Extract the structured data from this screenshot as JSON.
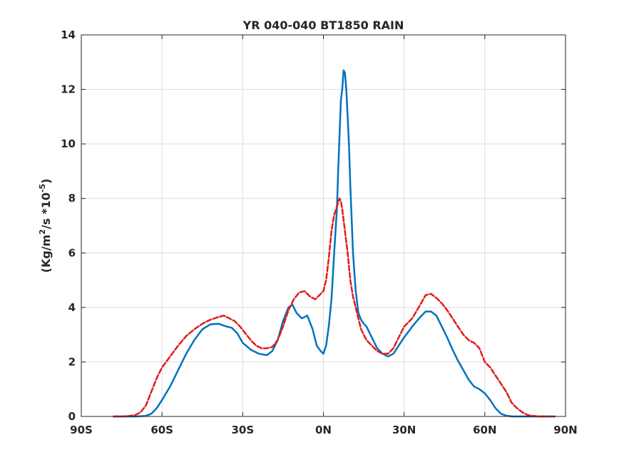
{
  "chart_data": {
    "type": "line",
    "title": "YR 040-040 BT1850 RAIN",
    "ylabel": {
      "prefix": "(Kg/m",
      "sup1": "2",
      "mid": "/s   *10",
      "sup2": "-5",
      "suffix": ")"
    },
    "xlabel": "",
    "xlim": [
      -90,
      90
    ],
    "ylim": [
      0,
      14
    ],
    "xticks": [
      -90,
      -60,
      -30,
      0,
      30,
      60,
      90
    ],
    "xtick_labels": [
      "90S",
      "60S",
      "30S",
      "0N",
      "30N",
      "60N",
      "90N"
    ],
    "yticks": [
      0,
      2,
      4,
      6,
      8,
      10,
      12,
      14
    ],
    "ytick_labels": [
      "0",
      "2",
      "4",
      "6",
      "8",
      "10",
      "12",
      "14"
    ],
    "grid": true,
    "series": [
      {
        "color": "#0072BD",
        "style": "solid",
        "x": [
          -78,
          -70,
          -66,
          -64,
          -62,
          -60,
          -57,
          -54,
          -51,
          -48,
          -45,
          -42,
          -39,
          -36,
          -34,
          -32,
          -30,
          -27,
          -24,
          -21,
          -19,
          -17,
          -15,
          -13,
          -11.5,
          -10,
          -8,
          -6,
          -4,
          -2.5,
          -1,
          0,
          1,
          2,
          3,
          4,
          5,
          5.5,
          6,
          6.5,
          7,
          7.5,
          8,
          8.5,
          9,
          9.5,
          10,
          11,
          12,
          13,
          14,
          15,
          16,
          18,
          20,
          22,
          24,
          26,
          28,
          30,
          33,
          36,
          38,
          40,
          42,
          44,
          46,
          48,
          50,
          52,
          54,
          56,
          58,
          60,
          62,
          64,
          66,
          68,
          70,
          72,
          74,
          76,
          78,
          80,
          82,
          84,
          86
        ],
        "y": [
          0,
          0,
          0.02,
          0.1,
          0.3,
          0.6,
          1.1,
          1.7,
          2.3,
          2.8,
          3.2,
          3.38,
          3.4,
          3.3,
          3.25,
          3.05,
          2.7,
          2.45,
          2.3,
          2.25,
          2.4,
          2.8,
          3.5,
          4.0,
          4.1,
          3.8,
          3.6,
          3.7,
          3.2,
          2.6,
          2.4,
          2.3,
          2.6,
          3.3,
          4.3,
          6.0,
          7.6,
          9.0,
          10.3,
          11.6,
          12.0,
          12.7,
          12.6,
          12.0,
          11.0,
          10.0,
          8.5,
          6.0,
          4.6,
          3.8,
          3.55,
          3.4,
          3.3,
          2.9,
          2.5,
          2.3,
          2.2,
          2.3,
          2.6,
          2.9,
          3.3,
          3.65,
          3.85,
          3.85,
          3.7,
          3.3,
          2.9,
          2.45,
          2.05,
          1.7,
          1.35,
          1.1,
          1.0,
          0.85,
          0.6,
          0.3,
          0.1,
          0.03,
          0,
          0,
          0,
          0,
          0,
          0,
          0,
          0,
          0
        ]
      },
      {
        "color": "#E31A1C",
        "style": "dashed",
        "x": [
          -78,
          -75,
          -72,
          -70,
          -68,
          -66,
          -64,
          -62,
          -60,
          -57,
          -54,
          -51,
          -48,
          -45,
          -42,
          -39,
          -37,
          -35,
          -33,
          -31,
          -29,
          -27,
          -25,
          -23,
          -21,
          -19,
          -17,
          -15,
          -13,
          -11,
          -9,
          -7,
          -5,
          -3,
          -1,
          0,
          1,
          2,
          3,
          4,
          5,
          6,
          6.5,
          7,
          7.5,
          8,
          9,
          10,
          11,
          12,
          13,
          14,
          16,
          18,
          20,
          22,
          24,
          26,
          28,
          30,
          33,
          36,
          38,
          40,
          42,
          44,
          46,
          48,
          50,
          52,
          54,
          56,
          58,
          60,
          62,
          64,
          66,
          68,
          70,
          72,
          74,
          76,
          78,
          80,
          82,
          84,
          86
        ],
        "y": [
          0,
          0,
          0.02,
          0.05,
          0.15,
          0.4,
          0.9,
          1.4,
          1.8,
          2.2,
          2.6,
          2.95,
          3.2,
          3.4,
          3.55,
          3.65,
          3.7,
          3.6,
          3.5,
          3.3,
          3.05,
          2.8,
          2.6,
          2.5,
          2.5,
          2.55,
          2.8,
          3.3,
          3.9,
          4.3,
          4.55,
          4.6,
          4.4,
          4.3,
          4.5,
          4.6,
          5.0,
          5.8,
          6.8,
          7.4,
          7.7,
          8.0,
          7.9,
          7.6,
          7.2,
          6.8,
          6.0,
          5.0,
          4.4,
          4.0,
          3.6,
          3.2,
          2.8,
          2.6,
          2.4,
          2.3,
          2.3,
          2.5,
          2.9,
          3.3,
          3.6,
          4.1,
          4.45,
          4.5,
          4.35,
          4.15,
          3.9,
          3.6,
          3.3,
          3.0,
          2.8,
          2.7,
          2.5,
          2.0,
          1.8,
          1.5,
          1.2,
          0.9,
          0.5,
          0.3,
          0.15,
          0.05,
          0.02,
          0,
          0,
          0,
          0
        ]
      }
    ]
  }
}
